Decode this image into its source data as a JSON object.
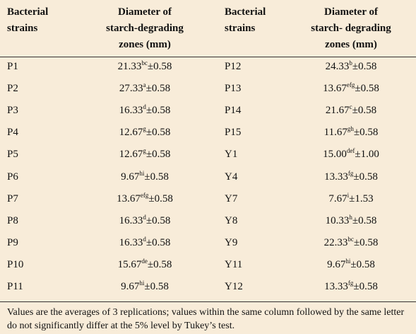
{
  "table": {
    "header": [
      [
        "Bacterial",
        "strains"
      ],
      [
        "Diameter of",
        "starch-degrading",
        "zones (mm)"
      ],
      [
        "Bacterial",
        "strains"
      ],
      [
        "Diameter of",
        "starch- degrading",
        "zones (mm)"
      ]
    ],
    "rows": [
      [
        "P1",
        [
          "21.33",
          "bc",
          "±0.58"
        ],
        "P12",
        [
          "24.33",
          "b",
          "±0.58"
        ]
      ],
      [
        "P2",
        [
          "27.33",
          "a",
          "±0.58"
        ],
        "P13",
        [
          "13.67",
          "efg",
          "±0.58"
        ]
      ],
      [
        "P3",
        [
          "16.33",
          "d",
          "±0.58"
        ],
        "P14",
        [
          "21.67",
          "c",
          "±0.58"
        ]
      ],
      [
        "P4",
        [
          "12.67",
          "g",
          "±0.58"
        ],
        "P15",
        [
          "11.67",
          "gh",
          "±0.58"
        ]
      ],
      [
        "P5",
        [
          "12.67",
          "g",
          "±0.58"
        ],
        "Y1",
        [
          "15.00",
          "def",
          "±1.00"
        ]
      ],
      [
        "P6",
        [
          "9.67",
          "hi",
          "±0.58"
        ],
        "Y4",
        [
          "13.33",
          "fg",
          "±0.58"
        ]
      ],
      [
        "P7",
        [
          "13.67",
          "efg",
          "±0.58"
        ],
        "Y7",
        [
          "7.67",
          "i",
          "±1.53"
        ]
      ],
      [
        "P8",
        [
          "16.33",
          "d",
          "±0.58"
        ],
        "Y8",
        [
          "10.33",
          "h",
          "±0.58"
        ]
      ],
      [
        "P9",
        [
          "16.33",
          "d",
          "±0.58"
        ],
        "Y9",
        [
          "22.33",
          "bc",
          "±0.58"
        ]
      ],
      [
        "P10",
        [
          "15.67",
          "de",
          "±0.58"
        ],
        "Y11",
        [
          "9.67",
          "hi",
          "±0.58"
        ]
      ],
      [
        "P11",
        [
          "9.67",
          "hi",
          "±0.58"
        ],
        "Y12",
        [
          "13.33",
          "fg",
          "±0.58"
        ]
      ]
    ],
    "footnote": "Values are the averages of 3 replications; values within the same column followed by the same letter do not significantly differ at the 5% level by Tukey’s test."
  }
}
